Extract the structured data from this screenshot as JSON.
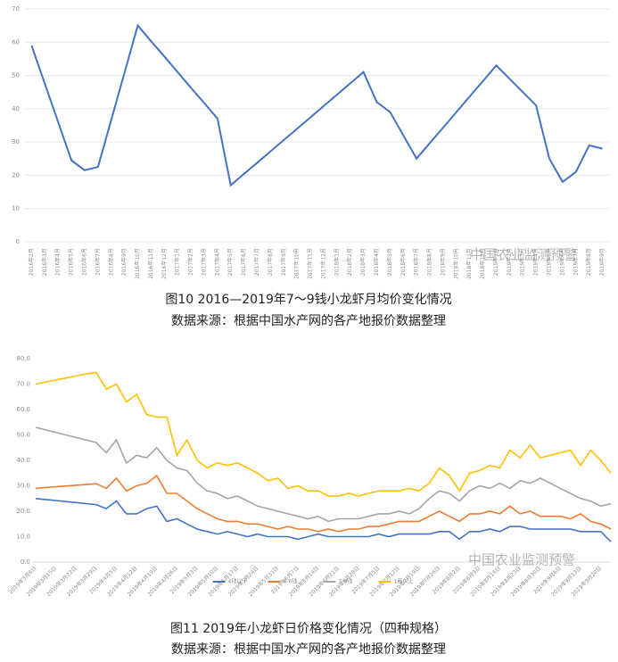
{
  "chart_data": [
    {
      "type": "line",
      "title": "图10  2016—2019年7～9钱小龙虾月均价变化情况",
      "subtitle": "数据来源：根据中国水产网的各产地报价数据整理",
      "categories": [
        "2016年2月",
        "2016年3月",
        "2016年4月",
        "2016年5月",
        "2016年6月",
        "2016年7月",
        "2016年8月",
        "2016年9月",
        "2016年10月",
        "2016年11月",
        "2016年12月",
        "2017年1月",
        "2017年2月",
        "2017年3月",
        "2017年4月",
        "2017年5月",
        "2017年6月",
        "2017年7月",
        "2017年8月",
        "2017年9月",
        "2017年10月",
        "2017年11月",
        "2017年12月",
        "2018年1月",
        "2018年2月",
        "2018年3月",
        "2018年4月",
        "2018年5月",
        "2018年6月",
        "2018年7月",
        "2018年8月",
        "2018年9月",
        "2018年10月",
        "2018年11月",
        "2018年12月",
        "2019年1月",
        "2019年2月",
        "2019年3月",
        "2019年4月",
        "2019年5月",
        "2019年6月",
        "2019年7月",
        "2019年8月",
        "2019年9月"
      ],
      "values": [
        59,
        47.5,
        36,
        24.5,
        21.5,
        22.5,
        36.7,
        50.8,
        65,
        60.3,
        55.7,
        51,
        46.3,
        41.7,
        37,
        17,
        20.4,
        23.8,
        27.2,
        30.6,
        34,
        37.4,
        40.8,
        44.2,
        47.6,
        51,
        42,
        39,
        32,
        25,
        29.7,
        34.3,
        39,
        43.7,
        48.3,
        53,
        49,
        45,
        41,
        25,
        18,
        21,
        29,
        28
      ],
      "color": "#4472c4",
      "ylim": [
        0,
        70
      ],
      "yticks": [
        0,
        10,
        20,
        30,
        40,
        50,
        60,
        70
      ],
      "grid": true
    },
    {
      "type": "line",
      "title": "图11  2019年小龙虾日价格变化情况（四种规格）",
      "subtitle": "数据来源：根据中国水产网的各产地报价数据整理",
      "categories": [
        "2019年3月8日",
        null,
        "2019年3月15日",
        null,
        "2019年3月22日",
        null,
        "2019年3月29日",
        null,
        "2019年4月5日",
        null,
        "2019年4月12日",
        null,
        "2019年4月19日",
        null,
        "2019年4月26日",
        null,
        "2019年5月3日",
        null,
        "2019年5月10日",
        null,
        "2019年5月17日",
        null,
        "2019年5月24日",
        null,
        "2019年5月31日",
        null,
        "2019年6月7日",
        null,
        "2019年6月14日",
        null,
        "2019年6月21日",
        null,
        "2019年6月28日",
        null,
        "2019年7月5日",
        null,
        "2019年7月12日",
        null,
        "2019年7月19日",
        null,
        "2019年7月26日",
        null,
        "2019年8月2日",
        null,
        "2019年8月9日",
        null,
        "2019年8月16日",
        null,
        "2019年8月23日",
        null,
        "2019年8月30日",
        null,
        "2019年9月6日",
        null,
        "2019年9月13日",
        null,
        "2019年9月20日",
        null
      ],
      "series": [
        {
          "name": "4钱以下",
          "color": "#4472c4",
          "values": [
            25,
            24.6,
            24.2,
            23.8,
            23.4,
            23,
            22.6,
            21,
            24,
            19,
            19,
            21,
            22,
            16,
            17,
            15,
            13,
            12,
            11,
            12,
            11,
            10,
            11,
            10,
            10,
            10,
            9,
            10,
            11,
            10,
            10,
            10,
            10,
            10,
            11,
            10,
            11,
            11,
            11,
            11,
            12,
            12,
            9,
            12,
            12,
            13,
            12,
            14,
            14,
            13,
            13,
            13,
            13,
            13,
            12,
            12,
            12,
            8
          ]
        },
        {
          "name": "4-6钱",
          "color": "#ed7d31",
          "values": [
            29,
            29.3,
            29.6,
            29.9,
            30.2,
            30.5,
            30.8,
            29,
            33,
            28,
            30,
            31,
            34,
            27,
            27,
            24,
            21,
            19,
            17,
            16,
            16,
            15,
            15,
            14,
            13,
            14,
            13,
            13,
            12,
            13,
            12,
            13,
            13,
            14,
            14,
            15,
            16,
            16,
            16,
            18,
            20,
            18,
            16,
            19,
            19,
            20,
            19,
            22,
            19,
            20,
            18,
            18,
            18,
            17,
            19,
            16,
            15,
            13
          ]
        },
        {
          "name": "7-9钱",
          "color": "#a5a5a5",
          "values": [
            53,
            52,
            51,
            50,
            49,
            48,
            47,
            43,
            48,
            39,
            42,
            41,
            45,
            40,
            37,
            36,
            31,
            28,
            27,
            25,
            26,
            24,
            22,
            21,
            20,
            19,
            18,
            17,
            18,
            16,
            17,
            17,
            17,
            18,
            19,
            19,
            20,
            19,
            21,
            25,
            28,
            27,
            24,
            28,
            30,
            29,
            31,
            29,
            32,
            31,
            33,
            31,
            29,
            27,
            25,
            24,
            22,
            23
          ]
        },
        {
          "name": "1两以上",
          "color": "#ffc000",
          "values": [
            70,
            70.8,
            71.6,
            72.4,
            73.2,
            74,
            74.6,
            68,
            70,
            63,
            66,
            58,
            57,
            57,
            42,
            48,
            40,
            37,
            39,
            38,
            39,
            37,
            35,
            32,
            33,
            29,
            30,
            28,
            28,
            26,
            26,
            27,
            26,
            27,
            28,
            28,
            28,
            29,
            28,
            31,
            37,
            34,
            28,
            35,
            36,
            38,
            37,
            44,
            41,
            46,
            41,
            42,
            43,
            44,
            38,
            44,
            40,
            35
          ]
        }
      ],
      "ylim": [
        0,
        80
      ],
      "yticks": [
        {
          "value": 0,
          "label": "0.0"
        },
        {
          "value": 10,
          "label": "10.0"
        },
        {
          "value": 20,
          "label": "20.0"
        },
        {
          "value": 30,
          "label": "30.0"
        },
        {
          "value": 40,
          "label": "40.0"
        },
        {
          "value": 50,
          "label": "50.0"
        },
        {
          "value": 60,
          "label": "60.0"
        },
        {
          "value": 70,
          "label": "70.0"
        },
        {
          "value": 80,
          "label": "80.0"
        }
      ],
      "grid": false,
      "legend": "bottom"
    }
  ],
  "watermark": [
    "中国农业监测预警",
    "中国农业监测预警"
  ]
}
